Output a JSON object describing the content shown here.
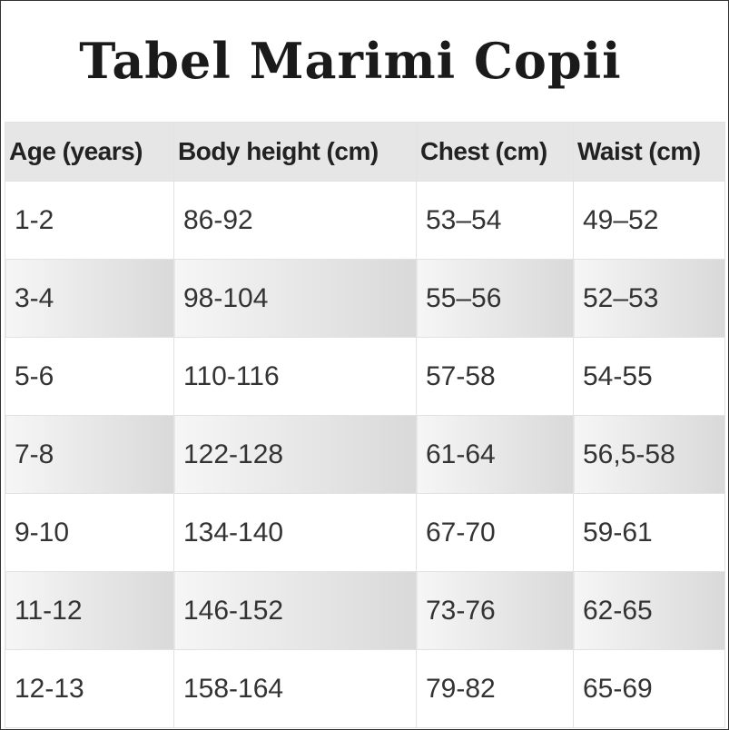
{
  "header": {
    "title": "Tabel Marimi Copii"
  },
  "table": {
    "columns": [
      "Age (years)",
      "Body height (cm)",
      "Chest (cm)",
      "Waist (cm)"
    ],
    "rows": [
      [
        "1-2",
        "86-92",
        "53–54",
        "49–52"
      ],
      [
        "3-4",
        "98-104",
        "55–56",
        "52–53"
      ],
      [
        "5-6",
        "110-116",
        "57-58",
        "54-55"
      ],
      [
        "7-8",
        "122-128",
        "61-64",
        "56,5-58"
      ],
      [
        "9-10",
        "134-140",
        "67-70",
        "59-61"
      ],
      [
        "11-12",
        "146-152",
        "73-76",
        "62-65"
      ],
      [
        "12-13",
        "158-164",
        "79-82",
        "65-69"
      ]
    ]
  }
}
